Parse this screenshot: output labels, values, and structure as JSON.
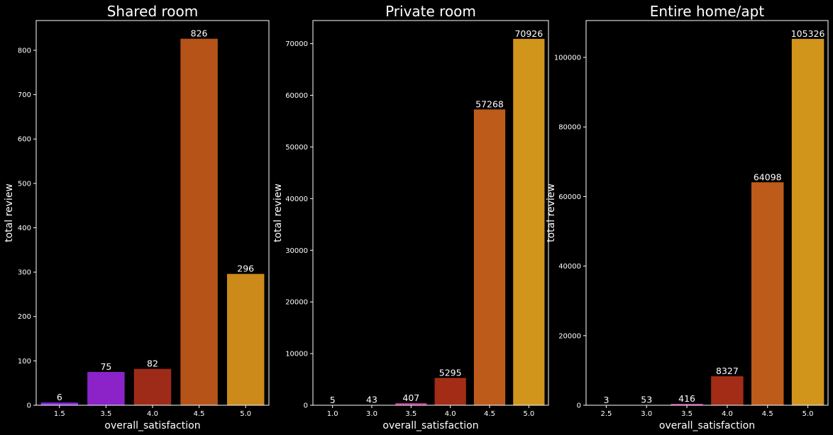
{
  "figure": {
    "background": "#000000",
    "text_color": "#ffffff"
  },
  "chart_data": [
    {
      "type": "bar",
      "title": "Shared room",
      "xlabel": "overall_satisfaction",
      "ylabel": "total review",
      "categories": [
        "1.5",
        "3.5",
        "4.0",
        "4.5",
        "5.0"
      ],
      "values": [
        6,
        75,
        82,
        826,
        296
      ],
      "colors": [
        "#8a2be2",
        "#8b23c9",
        "#9e2b17",
        "#b55318",
        "#cc8a1b"
      ],
      "ylim": [
        0,
        867
      ],
      "yticks": [
        0,
        100,
        200,
        300,
        400,
        500,
        600,
        700,
        800
      ],
      "data_labels": true,
      "grid": false
    },
    {
      "type": "bar",
      "title": "Private room",
      "xlabel": "overall_satisfaction",
      "ylabel": "total review",
      "categories": [
        "1.0",
        "3.0",
        "3.5",
        "4.0",
        "4.5",
        "5.0"
      ],
      "values": [
        5,
        43,
        407,
        5295,
        57268,
        70926
      ],
      "colors": [
        "#8a2be2",
        "#9b38d8",
        "#c12f95",
        "#a32c16",
        "#bd5b1a",
        "#d2951b"
      ],
      "ylim": [
        0,
        74472
      ],
      "yticks": [
        0,
        10000,
        20000,
        30000,
        40000,
        50000,
        60000,
        70000
      ],
      "data_labels": true,
      "grid": false
    },
    {
      "type": "bar",
      "title": "Entire home/apt",
      "xlabel": "overall_satisfaction",
      "ylabel": "total review",
      "categories": [
        "2.5",
        "3.0",
        "3.5",
        "4.0",
        "4.5",
        "5.0"
      ],
      "values": [
        3,
        53,
        416,
        8327,
        64098,
        105326
      ],
      "colors": [
        "#8a2be2",
        "#9b38d8",
        "#c12f95",
        "#a32c16",
        "#bd5b1a",
        "#d2951b"
      ],
      "ylim": [
        0,
        110592
      ],
      "yticks": [
        0,
        20000,
        40000,
        60000,
        80000,
        100000
      ],
      "data_labels": true,
      "grid": false
    }
  ]
}
